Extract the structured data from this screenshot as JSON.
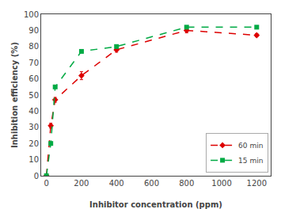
{
  "chart_data": {
    "type": "line",
    "x_label": "Inhibitor concentration (ppm)",
    "y_label": "Inhibition efficiency (%)",
    "x": [
      0,
      25,
      50,
      200,
      400,
      800,
      1200
    ],
    "series": [
      {
        "name": "60 min",
        "color": "#dd0000",
        "marker": "diamond",
        "line_style": "dashed",
        "values": [
          0,
          31,
          47,
          62,
          78,
          90,
          87
        ],
        "error": [
          0,
          1.5,
          1.5,
          2.5,
          1.5,
          1.5,
          1.0
        ]
      },
      {
        "name": "15 min",
        "color": "#00aa44",
        "marker": "square",
        "line_style": "dashed",
        "values": [
          0,
          20,
          55,
          77,
          80,
          92,
          92
        ],
        "error": [
          0,
          0.8,
          0.8,
          0.8,
          0.8,
          0.8,
          0.8
        ]
      }
    ],
    "xlim": [
      -30,
      1280
    ],
    "ylim": [
      0,
      100
    ],
    "xticks": [
      0,
      200,
      400,
      600,
      800,
      1000,
      1200
    ],
    "yticks": [
      0,
      10,
      20,
      30,
      40,
      50,
      60,
      70,
      80,
      90,
      100
    ],
    "grid": false,
    "legend": "lower right"
  }
}
